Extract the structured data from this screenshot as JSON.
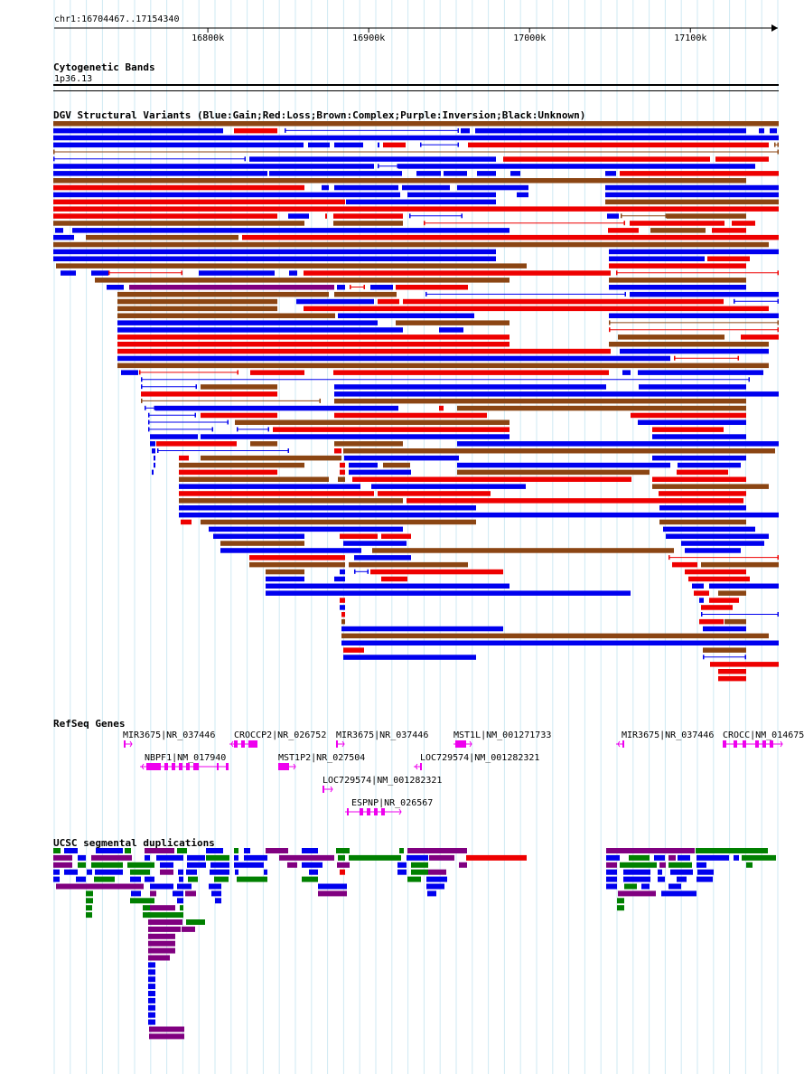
{
  "locus": "chr1:16704467..17154340",
  "ruler": {
    "start": 16704467,
    "end": 17154340,
    "ticks": [
      {
        "pos": 16800000,
        "label": "16800k"
      },
      {
        "pos": 16900000,
        "label": "16900k"
      },
      {
        "pos": 17000000,
        "label": "17000k"
      },
      {
        "pos": 17100000,
        "label": "17100k"
      }
    ]
  },
  "tracks": {
    "cytoband": {
      "title": "Cytogenetic Bands",
      "band": "1p36.13"
    },
    "dgv": {
      "title": "DGV Structural Variants (Blue:Gain;Red:Loss;Brown:Complex;Purple:Inversion;Black:Unknown)",
      "colors": {
        "gain": "#0000ee",
        "loss": "#ee0000",
        "complex": "#8b4513",
        "inversion": "#800080",
        "unknown": "#000000"
      }
    },
    "refseq": {
      "title": "RefSeq Genes",
      "color": "#ee00ee",
      "genes": [
        {
          "label": "MIR3675|NR_037446",
          "strand": "+"
        },
        {
          "label": "NBPF1|NM_017940",
          "strand": "-"
        },
        {
          "label": "CROCCP2|NR_026752",
          "strand": "-"
        },
        {
          "label": "MST1P2|NR_027504",
          "strand": "+"
        },
        {
          "label": "MIR3675|NR_037446",
          "strand": "+"
        },
        {
          "label": "LOC729574|NM_001282321",
          "strand": "+"
        },
        {
          "label": "ESPNP|NR_026567",
          "strand": "+"
        },
        {
          "label": "MST1L|NM_001271733",
          "strand": "-"
        },
        {
          "label": "LOC729574|NM_001282321",
          "strand": "-"
        },
        {
          "label": "MIR3675|NR_037446",
          "strand": "-"
        },
        {
          "label": "CROCC|NM_014675",
          "strand": "+"
        }
      ]
    },
    "segdup": {
      "title": "UCSC segmental duplications",
      "colors": {
        "blue": "#0000ee",
        "green": "#008000",
        "purple": "#800080",
        "red": "#ee0000"
      }
    }
  }
}
